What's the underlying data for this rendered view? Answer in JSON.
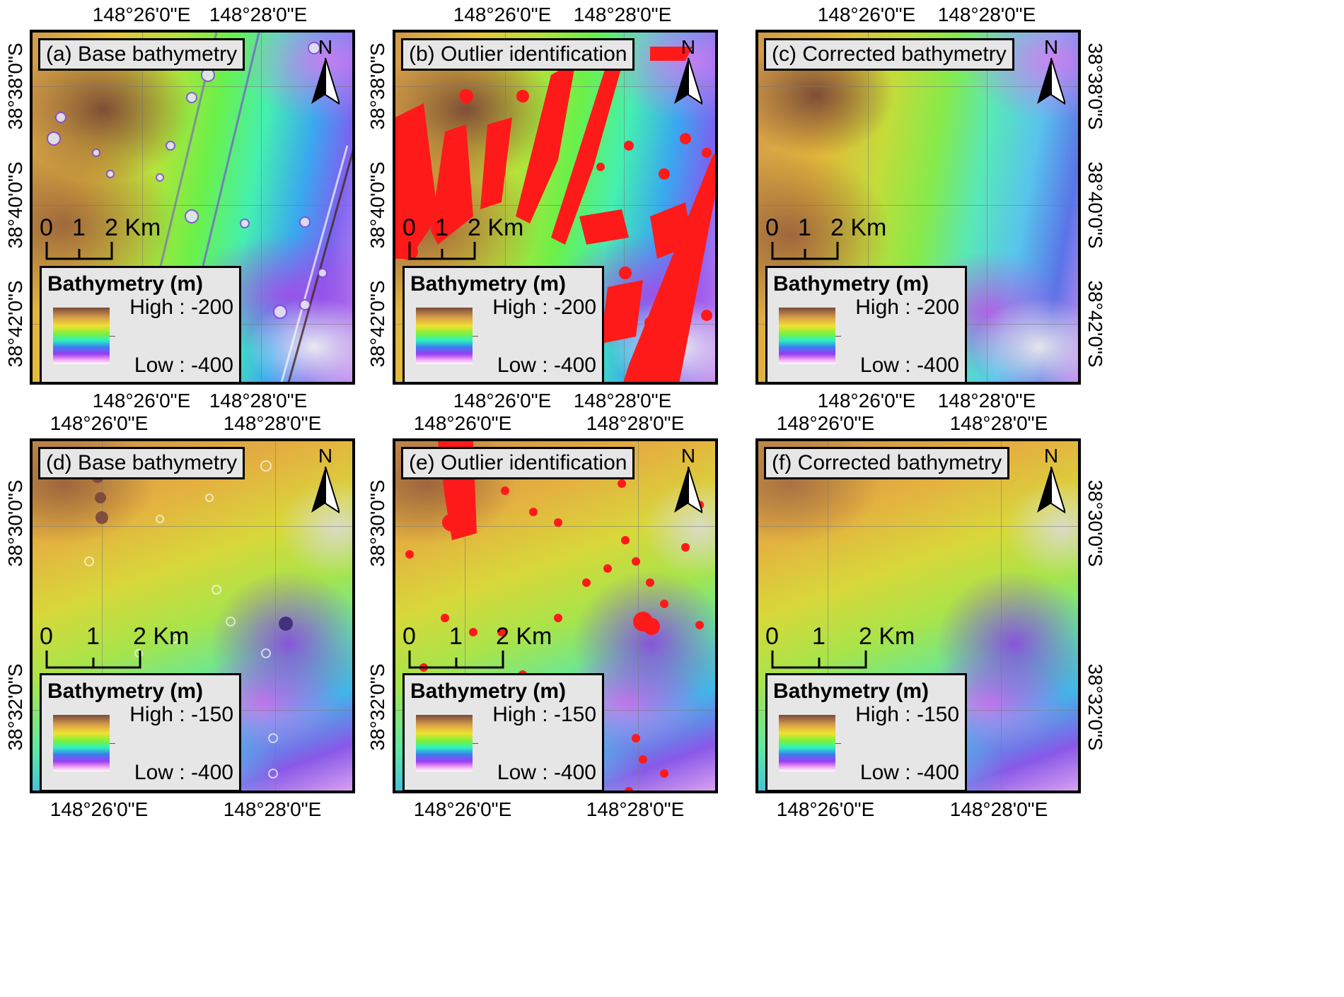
{
  "map_labels": {
    "top_row_top": [
      "148°26'0\"E",
      "148°28'0\"E"
    ],
    "top_row_bottom": [
      "148°26'0\"E",
      "148°28'0\"E"
    ],
    "top_row_left": [
      "38°38'0\"S",
      "38°40'0\"S",
      "38°42'0\"S"
    ],
    "bottom_row_top": [
      "148°26'0\"E",
      "148°28'0\"E"
    ],
    "bottom_row_bottom": [
      "148°26'0\"E",
      "148°28'0\"E"
    ],
    "bottom_row_left": [
      "38°30'0\"S",
      "38°32'0\"S"
    ]
  },
  "north_label": "N",
  "scale": {
    "labels": [
      "0",
      "1",
      "2 Km"
    ]
  },
  "legend": {
    "title": "Bathymetry (m)"
  },
  "panels": [
    {
      "title": "(a) Base bathymetry",
      "legend_high": "High : -200",
      "legend_low": "Low : -400"
    },
    {
      "title": "(b) Outlier identification",
      "legend_high": "High : -200",
      "legend_low": "Low : -400"
    },
    {
      "title": "(c) Corrected bathymetry",
      "legend_high": "High : -200",
      "legend_low": "Low : -400"
    },
    {
      "title": "(d) Base bathymetry",
      "legend_high": "High : -150",
      "legend_low": "Low : -400"
    },
    {
      "title": "(e) Outlier identification",
      "legend_high": "High : -150",
      "legend_low": "Low : -400"
    },
    {
      "title": "(f) Corrected bathymetry",
      "legend_high": "High : -150",
      "legend_low": "Low : -400"
    }
  ],
  "colors": {
    "outlier": "#ff1a1a",
    "frame": "#000000",
    "box_bg": "#e6e6e6"
  }
}
